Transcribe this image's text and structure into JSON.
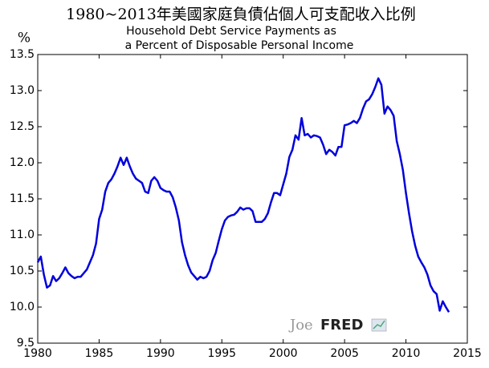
{
  "chart_data": {
    "type": "line",
    "title": "1980~2013年美國家庭負債佔個人可支配收入比例",
    "subtitle": [
      "Household Debt Service Payments as",
      "a Percent of Disposable Personal Income"
    ],
    "y_label": "%",
    "watermark": [
      "Joe",
      "FRED"
    ],
    "x": [
      1980,
      1980.25,
      1980.5,
      1980.75,
      1981,
      1981.25,
      1981.5,
      1981.75,
      1982,
      1982.25,
      1982.5,
      1982.75,
      1983,
      1983.25,
      1983.5,
      1983.75,
      1984,
      1984.25,
      1984.5,
      1984.75,
      1985,
      1985.25,
      1985.5,
      1985.75,
      1986,
      1986.25,
      1986.5,
      1986.75,
      1987,
      1987.25,
      1987.5,
      1987.75,
      1988,
      1988.25,
      1988.5,
      1988.75,
      1989,
      1989.25,
      1989.5,
      1989.75,
      1990,
      1990.25,
      1990.5,
      1990.75,
      1991,
      1991.25,
      1991.5,
      1991.75,
      1992,
      1992.25,
      1992.5,
      1992.75,
      1993,
      1993.25,
      1993.5,
      1993.75,
      1994,
      1994.25,
      1994.5,
      1994.75,
      1995,
      1995.25,
      1995.5,
      1995.75,
      1996,
      1996.25,
      1996.5,
      1996.75,
      1997,
      1997.25,
      1997.5,
      1997.75,
      1998,
      1998.25,
      1998.5,
      1998.75,
      1999,
      1999.25,
      1999.5,
      1999.75,
      2000,
      2000.25,
      2000.5,
      2000.75,
      2001,
      2001.25,
      2001.5,
      2001.75,
      2002,
      2002.25,
      2002.5,
      2002.75,
      2003,
      2003.25,
      2003.5,
      2003.75,
      2004,
      2004.25,
      2004.5,
      2004.75,
      2005,
      2005.25,
      2005.5,
      2005.75,
      2006,
      2006.25,
      2006.5,
      2006.75,
      2007,
      2007.25,
      2007.5,
      2007.75,
      2008,
      2008.25,
      2008.5,
      2008.75,
      2009,
      2009.25,
      2009.5,
      2009.75,
      2010,
      2010.25,
      2010.5,
      2010.75,
      2011,
      2011.25,
      2011.5,
      2011.75,
      2012,
      2012.25,
      2012.5,
      2012.75,
      2013,
      2013.25,
      2013.5
    ],
    "series": [
      {
        "name": "Household Debt Service Payments",
        "color": "#0000dd",
        "values": [
          10.62,
          10.7,
          10.45,
          10.27,
          10.3,
          10.43,
          10.36,
          10.4,
          10.47,
          10.55,
          10.47,
          10.43,
          10.4,
          10.42,
          10.42,
          10.47,
          10.52,
          10.62,
          10.72,
          10.88,
          11.22,
          11.35,
          11.6,
          11.72,
          11.77,
          11.85,
          11.95,
          12.07,
          11.97,
          12.07,
          11.95,
          11.85,
          11.78,
          11.75,
          11.72,
          11.6,
          11.58,
          11.75,
          11.8,
          11.75,
          11.65,
          11.62,
          11.6,
          11.6,
          11.52,
          11.38,
          11.2,
          10.9,
          10.72,
          10.58,
          10.48,
          10.43,
          10.38,
          10.42,
          10.4,
          10.42,
          10.5,
          10.65,
          10.75,
          10.92,
          11.08,
          11.2,
          11.25,
          11.27,
          11.28,
          11.32,
          11.38,
          11.35,
          11.37,
          11.37,
          11.33,
          11.18,
          11.18,
          11.18,
          11.22,
          11.3,
          11.45,
          11.58,
          11.58,
          11.55,
          11.7,
          11.85,
          12.08,
          12.18,
          12.38,
          12.32,
          12.62,
          12.38,
          12.4,
          12.35,
          12.38,
          12.37,
          12.35,
          12.25,
          12.12,
          12.18,
          12.15,
          12.1,
          12.22,
          12.22,
          12.52,
          12.53,
          12.55,
          12.58,
          12.55,
          12.62,
          12.75,
          12.85,
          12.88,
          12.95,
          13.05,
          13.17,
          13.08,
          12.68,
          12.78,
          12.73,
          12.65,
          12.3,
          12.12,
          11.9,
          11.58,
          11.3,
          11.05,
          10.85,
          10.7,
          10.62,
          10.55,
          10.45,
          10.3,
          10.22,
          10.18,
          9.95,
          10.08,
          10.0,
          9.93
        ]
      }
    ],
    "xlim": [
      1980,
      2015
    ],
    "xticks": [
      1980,
      1985,
      1990,
      1995,
      2000,
      2005,
      2010,
      2015
    ],
    "ylim": [
      9.5,
      13.5
    ],
    "yticks": [
      9.5,
      {
        "value": 10,
        "label": "10.0"
      },
      10.5,
      {
        "value": 11,
        "label": "11.0"
      },
      11.5,
      {
        "value": 12,
        "label": "12.0"
      },
      12.5,
      {
        "value": 13,
        "label": "13.0"
      },
      13.5
    ],
    "grid": false
  }
}
